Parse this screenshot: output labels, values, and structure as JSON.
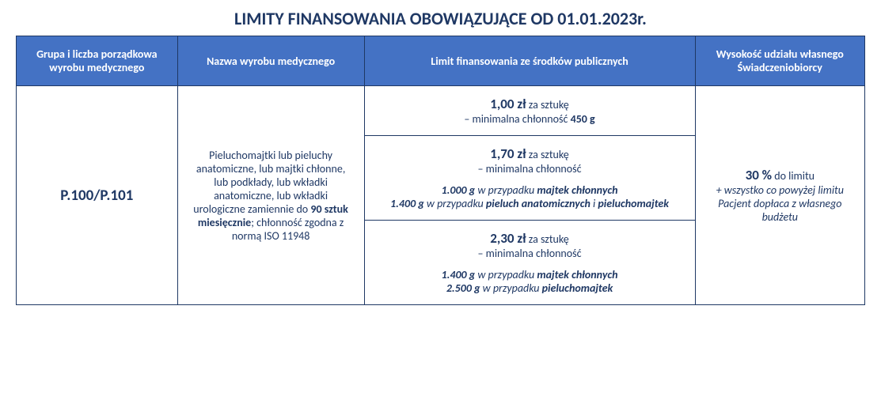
{
  "colors": {
    "header_bg": "#4472c4",
    "header_text": "#ffffff",
    "border": "#1f3864",
    "text": "#1f3864",
    "background": "#ffffff"
  },
  "title": "LIMITY FINANSOWANIA OBOWIĄZUJĄCE OD 01.01.2023r.",
  "headers": {
    "group": "Grupa i liczba porządkowa wyrobu medycznego",
    "name": "Nazwa wyrobu medycznego",
    "limit": "Limit finansowania ze środków publicznych",
    "share": "Wysokość udziału własnego Świadczeniobiorcy"
  },
  "row": {
    "group_code": "P.100/P.101",
    "product_name": {
      "pre": "Pieluchomajtki lub pieluchy anatomiczne, lub majtki chłonne, lub podkłady, lub wkładki anatomiczne, lub wkładki urologiczne zamiennie do ",
      "bold_qty": "90 sztuk miesięcznie",
      "after_qty": "; chłonność zgodna z normą ISO 11948"
    },
    "limits": [
      {
        "price": "1,00 zł",
        "per": " za sztukę",
        "subline": "– minimalna chłonność ",
        "subline_bold": "450 g",
        "details": []
      },
      {
        "price": "1,70 zł",
        "per": " za sztukę",
        "subline": "– minimalna chłonność",
        "subline_bold": "",
        "details": [
          {
            "weight": "1.000 g",
            "mid": " w przypadku ",
            "target": "majtek chłonnych",
            "tail": ""
          },
          {
            "weight": "1.400 g",
            "mid": " w przypadku ",
            "target": "pieluch anatomicznych",
            "tail_plain": " i ",
            "target2": "pieluchomajtek"
          }
        ]
      },
      {
        "price": "2,30 zł",
        "per": " za sztukę",
        "subline": "– minimalna chłonność",
        "subline_bold": "",
        "details": [
          {
            "weight": "1.400 g",
            "mid": " w przypadku ",
            "target": "majtek chłonnych",
            "tail": ""
          },
          {
            "weight": "2.500 g",
            "mid": " w przypadku ",
            "target": "pieluchomajtek",
            "tail": ""
          }
        ]
      }
    ],
    "share": {
      "main": "30 %",
      "main_suffix": " do limitu",
      "note": "+ wszystko co powyżej limitu Pacjent dopłaca z własnego budżetu"
    }
  }
}
